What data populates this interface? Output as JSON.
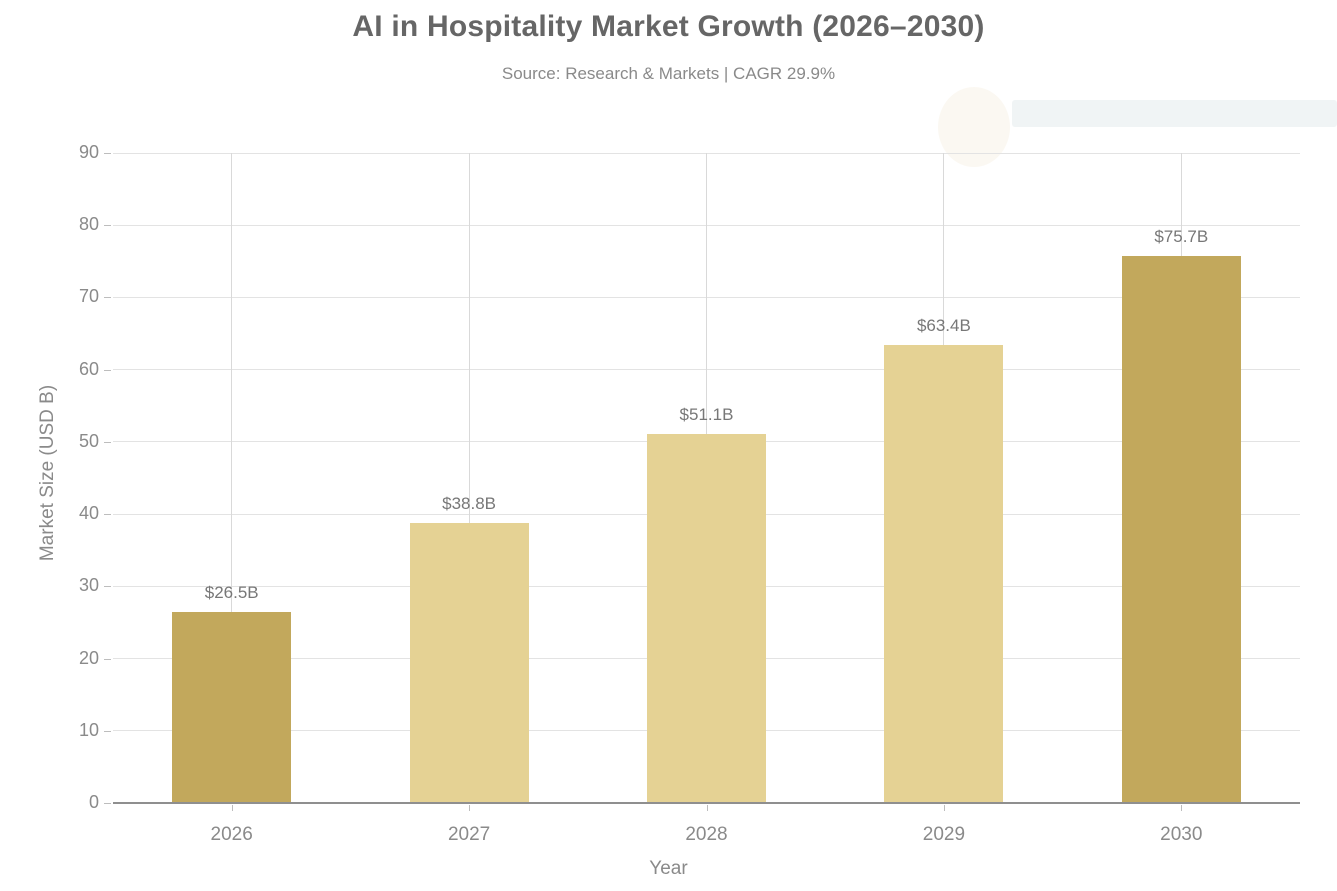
{
  "chart_data": {
    "type": "bar",
    "title": "AI in Hospitality Market Growth (2026–2030)",
    "subtitle": "Source: Research & Markets | CAGR 29.9%",
    "categories": [
      "2026",
      "2027",
      "2028",
      "2029",
      "2030"
    ],
    "values": [
      26.5,
      38.8,
      51.1,
      63.4,
      75.7
    ],
    "value_labels": [
      "$26.5B",
      "$38.8B",
      "$51.1B",
      "$63.4B",
      "$75.7B"
    ],
    "xlabel": "Year",
    "ylabel": "Market Size (USD B)",
    "ylim": [
      0,
      90
    ],
    "yticks": [
      0,
      10,
      20,
      30,
      40,
      50,
      60,
      70,
      80,
      90
    ],
    "bar_colors": [
      "#C2A85C",
      "#E5D294",
      "#E5D294",
      "#E5D294",
      "#C2A85C"
    ],
    "grid": "horizontal gridlines at each 10, vertical gridline at each category center",
    "legend": "none"
  },
  "colors": {
    "background": "#ffffff",
    "title_text": "#666666",
    "subtitle_text": "#8a8a8a",
    "tick_text": "#8a8a8a",
    "value_label_text": "#777777",
    "h_gridline": "#e3e3e3",
    "v_gridline": "#d9d9d9",
    "axis_line": "#8f8f8f",
    "bar_dark_gold": "#C2A85C",
    "bar_light_tan": "#E5D294"
  }
}
